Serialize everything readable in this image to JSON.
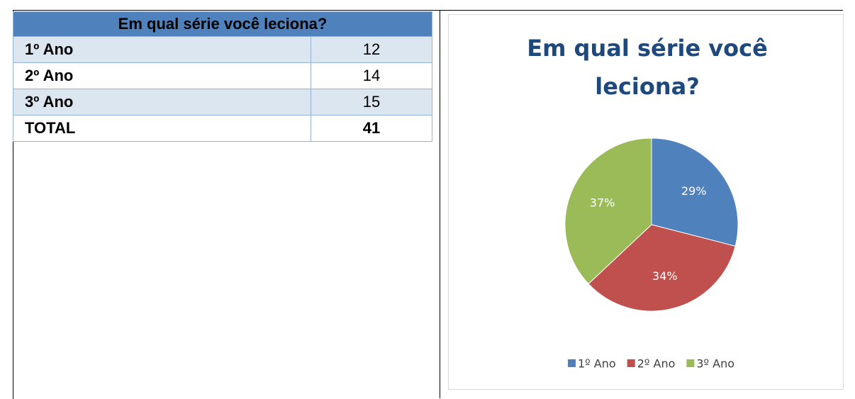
{
  "table": {
    "title": "Em qual série você leciona?",
    "rows": [
      [
        "1º Ano",
        12
      ],
      [
        "2º Ano",
        14
      ],
      [
        "3º Ano",
        15
      ],
      [
        "TOTAL",
        41
      ]
    ]
  },
  "chart_data": {
    "type": "pie",
    "title": "Em qual série você leciona?",
    "categories": [
      "1º Ano",
      "2º Ano",
      "3º Ano"
    ],
    "values": [
      29,
      34,
      37
    ],
    "value_labels": [
      "29%",
      "34%",
      "37%"
    ],
    "colors": [
      "#4f81bd",
      "#c0504d",
      "#9bbb59"
    ],
    "legend": "bottom"
  }
}
